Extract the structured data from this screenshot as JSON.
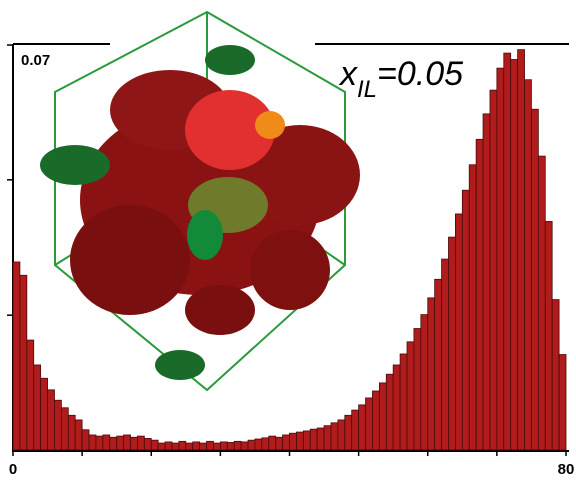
{
  "chart_data": {
    "type": "histogram",
    "annotation": {
      "text": "x",
      "subscript": "IL",
      "rest": "=0.05"
    },
    "color": "#b01c1c",
    "edgecolor": "#4a0a0a",
    "bins": [
      0,
      1,
      2,
      3,
      4,
      5,
      6,
      7,
      8,
      9,
      10,
      11,
      12,
      13,
      14,
      15,
      16,
      17,
      18,
      19,
      20,
      21,
      22,
      23,
      24,
      25,
      26,
      27,
      28,
      29,
      30,
      31,
      32,
      33,
      34,
      35,
      36,
      37,
      38,
      39,
      40,
      41,
      42,
      43,
      44,
      45,
      46,
      47,
      48,
      49,
      50,
      51,
      52,
      53,
      54,
      55,
      56,
      57,
      58,
      59,
      60,
      61,
      62,
      63,
      64,
      65,
      66,
      67,
      68,
      69,
      70,
      71,
      72,
      73,
      74,
      75,
      76,
      77,
      78,
      79,
      80
    ],
    "values": [
      0.0325,
      0.0302,
      0.019,
      0.0147,
      0.0124,
      0.0104,
      0.0086,
      0.0073,
      0.006,
      0.0052,
      0.0035,
      0.0026,
      0.0024,
      0.0026,
      0.0022,
      0.0024,
      0.0026,
      0.0022,
      0.0024,
      0.002,
      0.0017,
      0.0012,
      0.0014,
      0.0012,
      0.0015,
      0.0012,
      0.0014,
      0.0012,
      0.0015,
      0.0012,
      0.0014,
      0.0013,
      0.0015,
      0.0014,
      0.0017,
      0.0019,
      0.0021,
      0.0024,
      0.0022,
      0.0026,
      0.0029,
      0.0031,
      0.0033,
      0.0036,
      0.0038,
      0.0042,
      0.0047,
      0.0052,
      0.006,
      0.0069,
      0.0078,
      0.009,
      0.0102,
      0.0116,
      0.0131,
      0.0147,
      0.0166,
      0.0187,
      0.021,
      0.0234,
      0.0263,
      0.0295,
      0.033,
      0.0368,
      0.0408,
      0.0449,
      0.0493,
      0.0537,
      0.0581,
      0.0622,
      0.066,
      0.0686,
      0.0675,
      0.0692,
      0.064,
      0.0589,
      0.0508,
      0.0395,
      0.026,
      0.0165
    ],
    "xlim": [
      0,
      80
    ],
    "ylim": [
      0,
      0.07
    ],
    "xticks": [
      0,
      {
        "value": 10,
        "label": null
      },
      {
        "value": 20,
        "label": null
      },
      {
        "value": 30,
        "label": null
      },
      {
        "value": 40,
        "label": null
      },
      {
        "value": 50,
        "label": null
      },
      {
        "value": 60,
        "label": null
      },
      {
        "value": 70,
        "label": null
      },
      80
    ],
    "yticks": [
      {
        "value": 0.0233,
        "label": null
      },
      {
        "value": 0.0467,
        "label": null
      },
      0.07
    ]
  }
}
